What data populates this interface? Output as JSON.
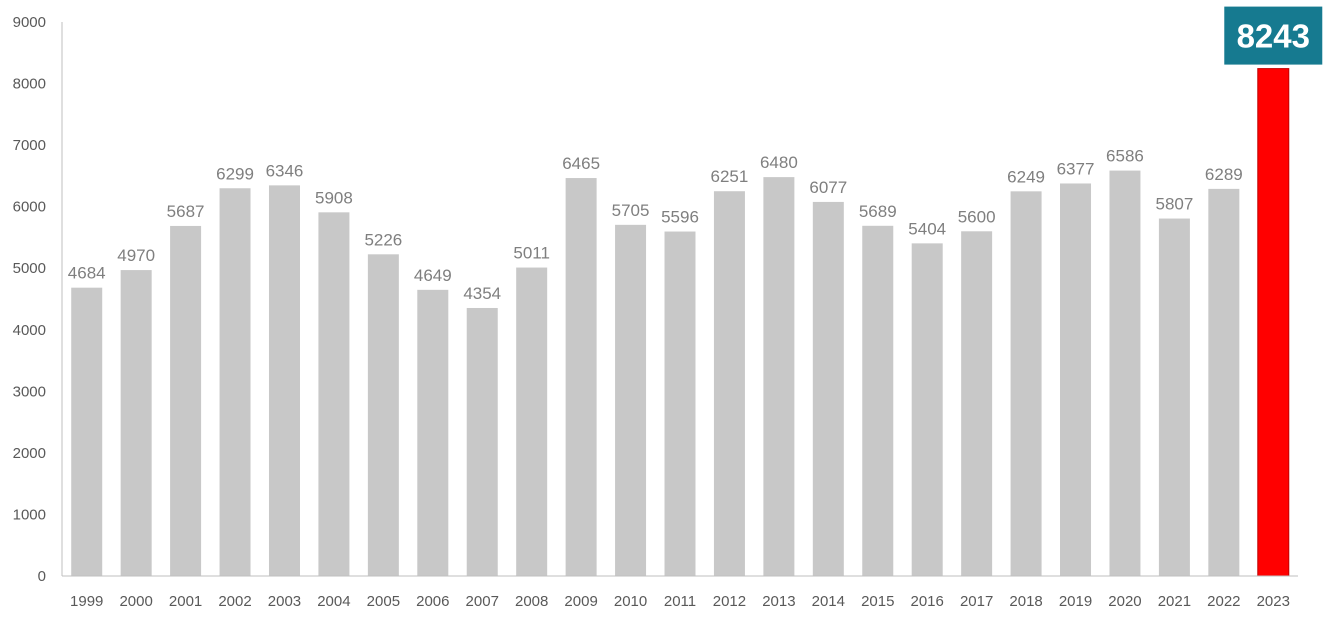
{
  "chart_data": {
    "type": "bar",
    "categories": [
      "1999",
      "2000",
      "2001",
      "2002",
      "2003",
      "2004",
      "2005",
      "2006",
      "2007",
      "2008",
      "2009",
      "2010",
      "2011",
      "2012",
      "2013",
      "2014",
      "2015",
      "2016",
      "2017",
      "2018",
      "2019",
      "2020",
      "2021",
      "2022",
      "2023"
    ],
    "values": [
      4684,
      4970,
      5687,
      6299,
      6346,
      5908,
      5226,
      4649,
      4354,
      5011,
      6465,
      5705,
      5596,
      6251,
      6480,
      6077,
      5689,
      5404,
      5600,
      6249,
      6377,
      6586,
      5807,
      6289,
      8243
    ],
    "title": "",
    "xlabel": "",
    "ylabel": "",
    "ylim": [
      0,
      9000
    ],
    "yticks": [
      0,
      1000,
      2000,
      3000,
      4000,
      5000,
      6000,
      7000,
      8000,
      9000
    ],
    "grid": false,
    "legend": "none",
    "highlight": {
      "category": "2023",
      "label": "8243"
    },
    "colors": {
      "bar": "#c8c8c8",
      "highlight_bar": "#ff0000",
      "highlight_bar_border": "#c00000",
      "highlight_label_bg": "#167a90",
      "highlight_label_text": "#ffffff",
      "data_label": "#7f7f7f",
      "tick_label": "#595959",
      "axis": "#bfbfbf"
    }
  }
}
